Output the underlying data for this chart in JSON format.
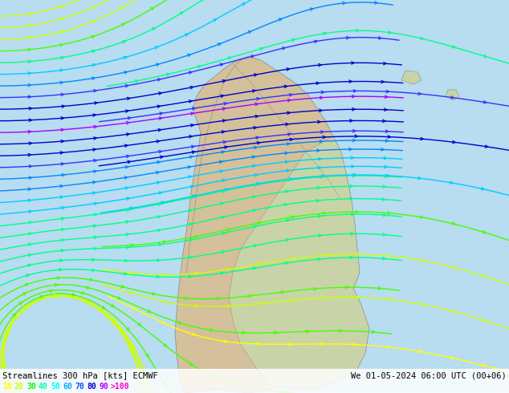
{
  "title_left": "Streamlines 300 hPa [kts] ECMWF",
  "title_right": "We 01-05-2024 06:00 UTC (00+06)",
  "legend_values": [
    "10",
    "20",
    "30",
    "40",
    "50",
    "60",
    "70",
    "80",
    "90",
    ">100"
  ],
  "legend_colors": [
    "#FFFF00",
    "#CCFF00",
    "#00FF00",
    "#00FFAA",
    "#00FFFF",
    "#00AAFF",
    "#0055FF",
    "#0000CC",
    "#AA00FF",
    "#FF00CC"
  ],
  "bg_color": "#B8DCF0",
  "land_color_main": "#D4C09A",
  "land_color_east": "#C8D4A8",
  "border_color": "#888888",
  "fig_width": 6.34,
  "fig_height": 4.9,
  "dpi": 100,
  "n_streamlines": 32,
  "speed_thresholds": [
    10,
    20,
    30,
    40,
    50,
    60,
    70,
    80,
    90,
    100
  ],
  "speed_colors": [
    "#FFFF00",
    "#CCFF00",
    "#00FF00",
    "#00FFAA",
    "#00CCFF",
    "#0088FF",
    "#3333FF",
    "#0000AA",
    "#AA00FF",
    "#FF00CC"
  ]
}
